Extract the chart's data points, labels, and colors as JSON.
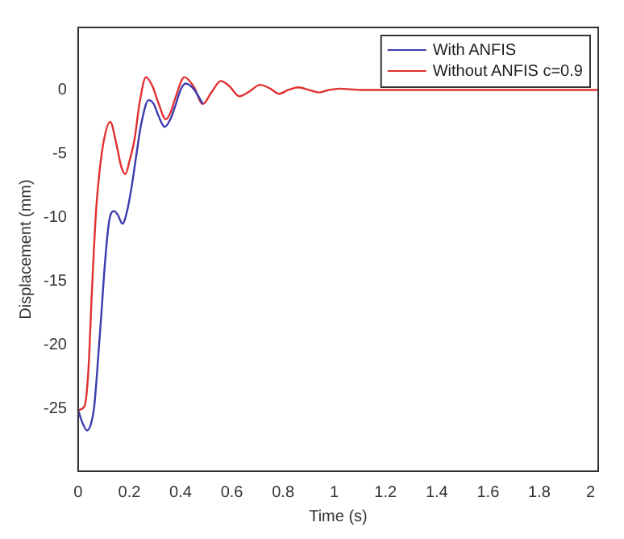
{
  "chart_data": {
    "type": "line",
    "xlabel": "Time (s)",
    "ylabel": "Displacement (mm)",
    "xlim": [
      0,
      2.03
    ],
    "xticks": [
      0,
      0.2,
      0.4,
      0.6,
      0.8,
      1,
      1.2,
      1.4,
      1.6,
      1.8,
      2
    ],
    "ylim": [
      -29.9,
      4.9
    ],
    "yticks": [
      -25,
      -20,
      -15,
      -10,
      -5,
      0
    ],
    "grid": false,
    "legend": "top right",
    "marker": "none",
    "line_style": "solid",
    "series": [
      {
        "name": "With ANFIS",
        "color": "#3b3bb0",
        "x": [
          0,
          0.015,
          0.035,
          0.05,
          0.063,
          0.08,
          0.092,
          0.105,
          0.121,
          0.14,
          0.155,
          0.173,
          0.19,
          0.208,
          0.228,
          0.246,
          0.275,
          0.295,
          0.313,
          0.338,
          0.36,
          0.38,
          0.4,
          0.419,
          0.45,
          0.487
        ],
        "values": [
          -25.1,
          -26,
          -26.7,
          -26.2,
          -24.8,
          -20.5,
          -17.2,
          -13.5,
          -10.3,
          -9.5,
          -9.8,
          -10.5,
          -9.6,
          -7.7,
          -5,
          -2.7,
          -0.8,
          -1.1,
          -2,
          -2.9,
          -2.3,
          -1.2,
          0,
          0.5,
          0.1,
          -1.1
        ]
      },
      {
        "name": "Without ANFIS c=0.9",
        "color": "#e03030",
        "x": [
          0,
          0.025,
          0.04,
          0.054,
          0.07,
          0.083,
          0.1,
          0.125,
          0.15,
          0.168,
          0.185,
          0.2,
          0.22,
          0.24,
          0.265,
          0.29,
          0.313,
          0.342,
          0.36,
          0.38,
          0.415,
          0.45,
          0.487,
          0.52,
          0.557,
          0.59,
          0.63,
          0.67,
          0.71,
          0.75,
          0.785,
          0.82,
          0.86,
          0.9,
          0.94,
          0.98,
          1.02,
          1.1,
          1.2,
          1.4,
          1.6,
          1.8,
          2.03
        ],
        "values": [
          -25.1,
          -24.8,
          -22,
          -15.7,
          -9.5,
          -6.5,
          -4,
          -2.5,
          -4.3,
          -6,
          -6.6,
          -5.6,
          -3.9,
          -1,
          1,
          0.3,
          -1,
          -2.3,
          -1.8,
          -0.6,
          1,
          0.3,
          -1.1,
          -0.2,
          0.7,
          0.3,
          -0.5,
          -0.1,
          0.4,
          0.1,
          -0.3,
          0,
          0.2,
          0,
          -0.2,
          0,
          0.1,
          0,
          0,
          0,
          0,
          0,
          0
        ]
      }
    ]
  }
}
